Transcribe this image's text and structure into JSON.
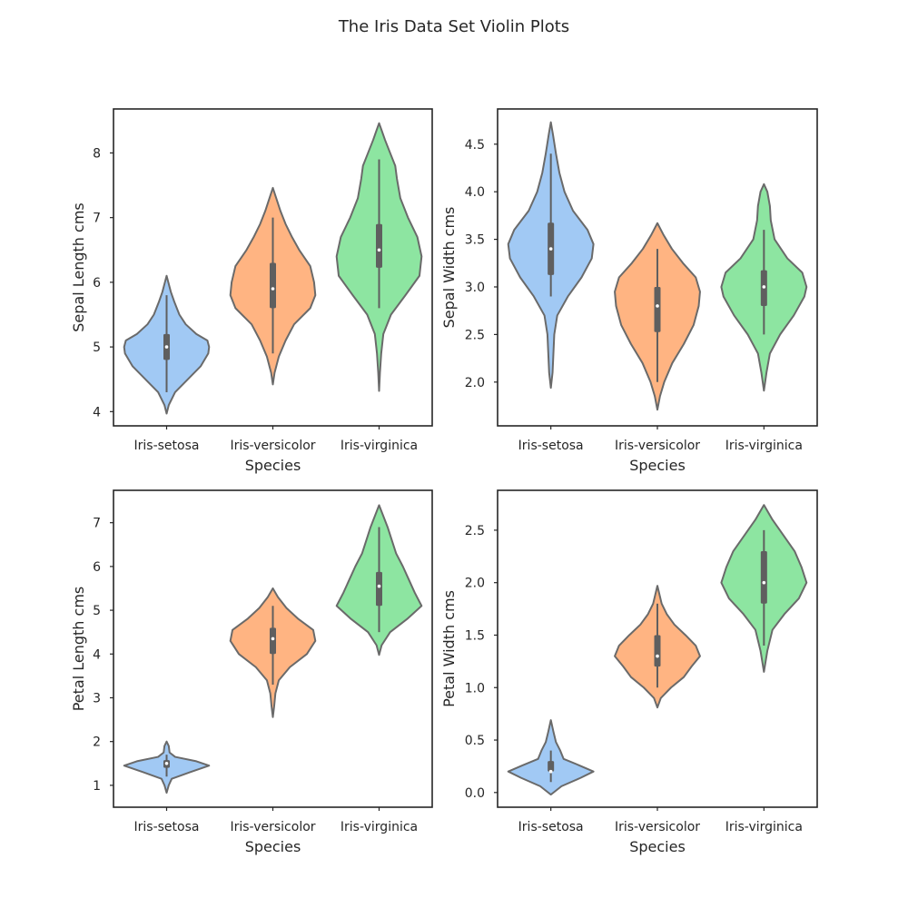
{
  "title": "The Iris Data Set Violin Plots",
  "palette": {
    "Iris-setosa": "#a1c9f4",
    "Iris-versicolor": "#ffb482",
    "Iris-virginica": "#8de5a1",
    "outline": "#6a6a6a",
    "box": "#5f5f5f",
    "median": "#ffffff"
  },
  "chart_data": [
    {
      "type": "violin",
      "title": "",
      "xlabel": "Species",
      "ylabel": "Sepal Length cms",
      "categories": [
        "Iris-setosa",
        "Iris-versicolor",
        "Iris-virginica"
      ],
      "ylim": [
        3.78,
        8.68
      ],
      "yticks": [
        4,
        5,
        6,
        7,
        8
      ],
      "yticklabels": [
        "4",
        "5",
        "6",
        "7",
        "8"
      ],
      "grid": false,
      "violins": [
        {
          "category": "Iris-setosa",
          "q1": 4.8,
          "median": 5.0,
          "q3": 5.2,
          "whisker_low": 4.3,
          "whisker_high": 5.8,
          "density": [
            [
              3.97,
              0.0
            ],
            [
              4.1,
              0.05
            ],
            [
              4.3,
              0.2
            ],
            [
              4.5,
              0.5
            ],
            [
              4.7,
              0.8
            ],
            [
              4.9,
              0.98
            ],
            [
              5.0,
              1.0
            ],
            [
              5.1,
              0.96
            ],
            [
              5.2,
              0.7
            ],
            [
              5.35,
              0.45
            ],
            [
              5.5,
              0.3
            ],
            [
              5.7,
              0.18
            ],
            [
              5.85,
              0.1
            ],
            [
              6.0,
              0.04
            ],
            [
              6.1,
              0.0
            ]
          ]
        },
        {
          "category": "Iris-versicolor",
          "q1": 5.6,
          "median": 5.9,
          "q3": 6.3,
          "whisker_low": 4.9,
          "whisker_high": 7.0,
          "density": [
            [
              4.42,
              0.0
            ],
            [
              4.6,
              0.04
            ],
            [
              4.85,
              0.14
            ],
            [
              5.1,
              0.3
            ],
            [
              5.35,
              0.5
            ],
            [
              5.6,
              0.88
            ],
            [
              5.8,
              1.0
            ],
            [
              6.0,
              0.97
            ],
            [
              6.25,
              0.88
            ],
            [
              6.5,
              0.62
            ],
            [
              6.7,
              0.45
            ],
            [
              6.9,
              0.3
            ],
            [
              7.1,
              0.18
            ],
            [
              7.3,
              0.08
            ],
            [
              7.46,
              0.0
            ]
          ]
        },
        {
          "category": "Iris-virginica",
          "q1": 6.225,
          "median": 6.5,
          "q3": 6.9,
          "whisker_low": 5.6,
          "whisker_high": 7.9,
          "density": [
            [
              4.32,
              0.0
            ],
            [
              4.6,
              0.02
            ],
            [
              4.9,
              0.05
            ],
            [
              5.2,
              0.1
            ],
            [
              5.5,
              0.28
            ],
            [
              5.8,
              0.62
            ],
            [
              6.1,
              0.95
            ],
            [
              6.4,
              1.0
            ],
            [
              6.7,
              0.9
            ],
            [
              7.0,
              0.68
            ],
            [
              7.3,
              0.5
            ],
            [
              7.6,
              0.42
            ],
            [
              7.8,
              0.38
            ],
            [
              8.0,
              0.26
            ],
            [
              8.2,
              0.14
            ],
            [
              8.35,
              0.06
            ],
            [
              8.46,
              0.0
            ]
          ]
        }
      ]
    },
    {
      "type": "violin",
      "title": "",
      "xlabel": "Species",
      "ylabel": "Sepal Width cms",
      "categories": [
        "Iris-setosa",
        "Iris-versicolor",
        "Iris-virginica"
      ],
      "ylim": [
        1.54,
        4.87
      ],
      "yticks": [
        2.0,
        2.5,
        3.0,
        3.5,
        4.0,
        4.5
      ],
      "yticklabels": [
        "2.0",
        "2.5",
        "3.0",
        "3.5",
        "4.0",
        "4.5"
      ],
      "grid": false,
      "violins": [
        {
          "category": "Iris-setosa",
          "q1": 3.125,
          "median": 3.4,
          "q3": 3.675,
          "whisker_low": 2.9,
          "whisker_high": 4.4,
          "density": [
            [
              1.94,
              0.0
            ],
            [
              2.1,
              0.04
            ],
            [
              2.3,
              0.06
            ],
            [
              2.5,
              0.08
            ],
            [
              2.7,
              0.15
            ],
            [
              2.9,
              0.4
            ],
            [
              3.1,
              0.72
            ],
            [
              3.3,
              0.96
            ],
            [
              3.45,
              1.0
            ],
            [
              3.6,
              0.86
            ],
            [
              3.8,
              0.52
            ],
            [
              4.0,
              0.32
            ],
            [
              4.2,
              0.2
            ],
            [
              4.4,
              0.12
            ],
            [
              4.6,
              0.05
            ],
            [
              4.73,
              0.0
            ]
          ]
        },
        {
          "category": "Iris-versicolor",
          "q1": 2.525,
          "median": 2.8,
          "q3": 3.0,
          "whisker_low": 2.0,
          "whisker_high": 3.4,
          "density": [
            [
              1.71,
              0.0
            ],
            [
              1.85,
              0.06
            ],
            [
              2.0,
              0.16
            ],
            [
              2.2,
              0.35
            ],
            [
              2.4,
              0.62
            ],
            [
              2.6,
              0.85
            ],
            [
              2.8,
              0.97
            ],
            [
              2.95,
              1.0
            ],
            [
              3.1,
              0.9
            ],
            [
              3.25,
              0.6
            ],
            [
              3.4,
              0.34
            ],
            [
              3.55,
              0.14
            ],
            [
              3.67,
              0.0
            ]
          ]
        },
        {
          "category": "Iris-virginica",
          "q1": 2.8,
          "median": 3.0,
          "q3": 3.175,
          "whisker_low": 2.5,
          "whisker_high": 3.6,
          "density": [
            [
              1.91,
              0.0
            ],
            [
              2.1,
              0.06
            ],
            [
              2.3,
              0.14
            ],
            [
              2.5,
              0.38
            ],
            [
              2.7,
              0.7
            ],
            [
              2.9,
              0.95
            ],
            [
              3.0,
              1.0
            ],
            [
              3.15,
              0.9
            ],
            [
              3.3,
              0.55
            ],
            [
              3.5,
              0.25
            ],
            [
              3.7,
              0.16
            ],
            [
              3.85,
              0.14
            ],
            [
              4.0,
              0.08
            ],
            [
              4.08,
              0.0
            ]
          ]
        }
      ]
    },
    {
      "type": "violin",
      "title": "",
      "xlabel": "Species",
      "ylabel": "Petal Length cms",
      "categories": [
        "Iris-setosa",
        "Iris-versicolor",
        "Iris-virginica"
      ],
      "ylim": [
        0.5,
        7.74
      ],
      "yticks": [
        1,
        2,
        3,
        4,
        5,
        6,
        7
      ],
      "yticklabels": [
        "1",
        "2",
        "3",
        "4",
        "5",
        "6",
        "7"
      ],
      "grid": false,
      "violins": [
        {
          "category": "Iris-setosa",
          "q1": 1.4,
          "median": 1.5,
          "q3": 1.575,
          "whisker_low": 1.2,
          "whisker_high": 1.7,
          "density": [
            [
              0.83,
              0.0
            ],
            [
              1.0,
              0.05
            ],
            [
              1.15,
              0.12
            ],
            [
              1.3,
              0.55
            ],
            [
              1.45,
              1.0
            ],
            [
              1.55,
              0.7
            ],
            [
              1.65,
              0.2
            ],
            [
              1.75,
              0.07
            ],
            [
              1.9,
              0.05
            ],
            [
              2.0,
              0.0
            ]
          ]
        },
        {
          "category": "Iris-versicolor",
          "q1": 4.0,
          "median": 4.35,
          "q3": 4.6,
          "whisker_low": 3.3,
          "whisker_high": 5.1,
          "density": [
            [
              2.56,
              0.0
            ],
            [
              2.8,
              0.03
            ],
            [
              3.1,
              0.06
            ],
            [
              3.4,
              0.14
            ],
            [
              3.7,
              0.4
            ],
            [
              4.0,
              0.8
            ],
            [
              4.3,
              1.0
            ],
            [
              4.55,
              0.95
            ],
            [
              4.8,
              0.6
            ],
            [
              5.05,
              0.32
            ],
            [
              5.3,
              0.12
            ],
            [
              5.5,
              0.0
            ]
          ]
        },
        {
          "category": "Iris-virginica",
          "q1": 5.1,
          "median": 5.55,
          "q3": 5.875,
          "whisker_low": 4.5,
          "whisker_high": 6.9,
          "density": [
            [
              3.98,
              0.0
            ],
            [
              4.2,
              0.06
            ],
            [
              4.5,
              0.26
            ],
            [
              4.8,
              0.66
            ],
            [
              5.1,
              1.0
            ],
            [
              5.4,
              0.84
            ],
            [
              5.7,
              0.7
            ],
            [
              6.0,
              0.56
            ],
            [
              6.3,
              0.4
            ],
            [
              6.6,
              0.3
            ],
            [
              6.9,
              0.2
            ],
            [
              7.2,
              0.08
            ],
            [
              7.4,
              0.0
            ]
          ]
        }
      ]
    },
    {
      "type": "violin",
      "title": "",
      "xlabel": "Species",
      "ylabel": "Petal Width cms",
      "categories": [
        "Iris-setosa",
        "Iris-versicolor",
        "Iris-virginica"
      ],
      "ylim": [
        -0.14,
        2.88
      ],
      "yticks": [
        0.0,
        0.5,
        1.0,
        1.5,
        2.0,
        2.5
      ],
      "yticklabels": [
        "0.0",
        "0.5",
        "1.0",
        "1.5",
        "2.0",
        "2.5"
      ],
      "grid": false,
      "violins": [
        {
          "category": "Iris-setosa",
          "q1": 0.2,
          "median": 0.2,
          "q3": 0.3,
          "whisker_low": 0.1,
          "whisker_high": 0.4,
          "density": [
            [
              -0.02,
              0.0
            ],
            [
              0.06,
              0.25
            ],
            [
              0.14,
              0.7
            ],
            [
              0.2,
              1.0
            ],
            [
              0.26,
              0.66
            ],
            [
              0.32,
              0.3
            ],
            [
              0.4,
              0.22
            ],
            [
              0.48,
              0.12
            ],
            [
              0.58,
              0.06
            ],
            [
              0.69,
              0.0
            ]
          ]
        },
        {
          "category": "Iris-versicolor",
          "q1": 1.2,
          "median": 1.3,
          "q3": 1.5,
          "whisker_low": 1.0,
          "whisker_high": 1.8,
          "density": [
            [
              0.81,
              0.0
            ],
            [
              0.9,
              0.08
            ],
            [
              1.0,
              0.32
            ],
            [
              1.1,
              0.62
            ],
            [
              1.2,
              0.8
            ],
            [
              1.3,
              1.0
            ],
            [
              1.4,
              0.9
            ],
            [
              1.5,
              0.66
            ],
            [
              1.6,
              0.4
            ],
            [
              1.7,
              0.22
            ],
            [
              1.8,
              0.1
            ],
            [
              1.97,
              0.0
            ]
          ]
        },
        {
          "category": "Iris-virginica",
          "q1": 1.8,
          "median": 2.0,
          "q3": 2.3,
          "whisker_low": 1.4,
          "whisker_high": 2.5,
          "density": [
            [
              1.15,
              0.0
            ],
            [
              1.35,
              0.08
            ],
            [
              1.55,
              0.2
            ],
            [
              1.7,
              0.48
            ],
            [
              1.85,
              0.82
            ],
            [
              2.0,
              1.0
            ],
            [
              2.15,
              0.88
            ],
            [
              2.3,
              0.72
            ],
            [
              2.45,
              0.46
            ],
            [
              2.6,
              0.2
            ],
            [
              2.74,
              0.0
            ]
          ]
        }
      ]
    }
  ]
}
